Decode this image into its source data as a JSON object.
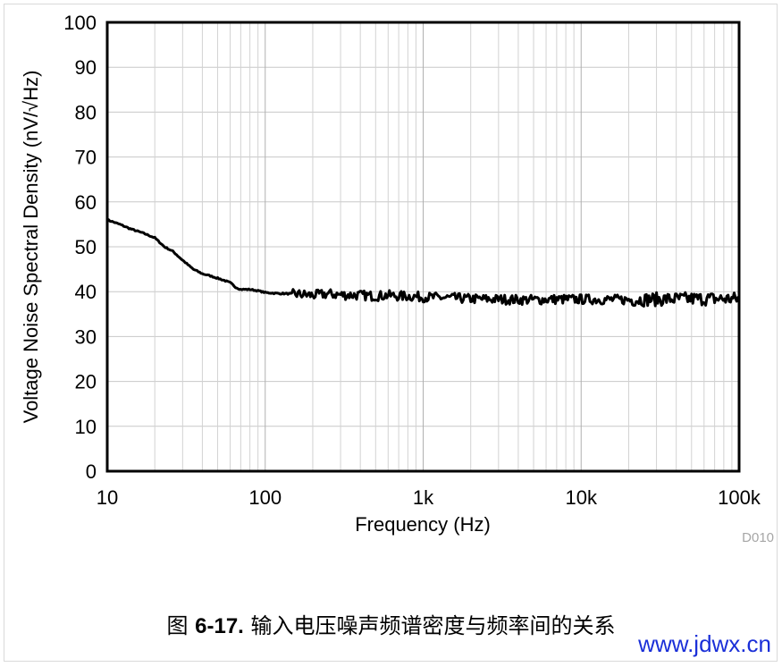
{
  "chart_data": {
    "type": "line",
    "x_scale": "log",
    "xlim": [
      10,
      100000
    ],
    "ylim": [
      0,
      100
    ],
    "xticks": [
      "10",
      "100",
      "1k",
      "10k",
      "100k"
    ],
    "yticks": [
      "0",
      "10",
      "20",
      "30",
      "40",
      "50",
      "60",
      "70",
      "80",
      "90",
      "100"
    ],
    "xlabel": "Frequency (Hz)",
    "ylabel": "Voltage Noise Spectral Density (nV/√Hz)",
    "grid": true,
    "line_color": "#000000",
    "series": [
      {
        "x": [
          10,
          12,
          14,
          17,
          20,
          23,
          26,
          30,
          35,
          40,
          45,
          50,
          55,
          60,
          65,
          70,
          80,
          90,
          100,
          120,
          150,
          180,
          200,
          250,
          300,
          400,
          500,
          600,
          700,
          800,
          1000,
          1500,
          2000,
          3000,
          4000,
          5000,
          7000,
          10000,
          20000,
          30000,
          50000,
          70000,
          100000
        ],
        "y": [
          56,
          55,
          54,
          53,
          52,
          50,
          49,
          47,
          45,
          44,
          43.5,
          43,
          42.5,
          42,
          41,
          40.5,
          40.5,
          40.2,
          39.8,
          39.6,
          39.5,
          39.3,
          39.2,
          39.5,
          39.3,
          39.2,
          39.0,
          39.2,
          39.0,
          39.0,
          38.8,
          38.6,
          38.4,
          38.3,
          38.2,
          38.2,
          38.3,
          38.3,
          38.2,
          38.3,
          38.4,
          38.4,
          38.4
        ]
      }
    ]
  },
  "figure_code": "D010",
  "caption": {
    "prefix": "图 ",
    "number": "6-17.",
    "text": " 输入电压噪声频谱密度与频率间的关系"
  },
  "watermark": "www.jdwx.cn"
}
